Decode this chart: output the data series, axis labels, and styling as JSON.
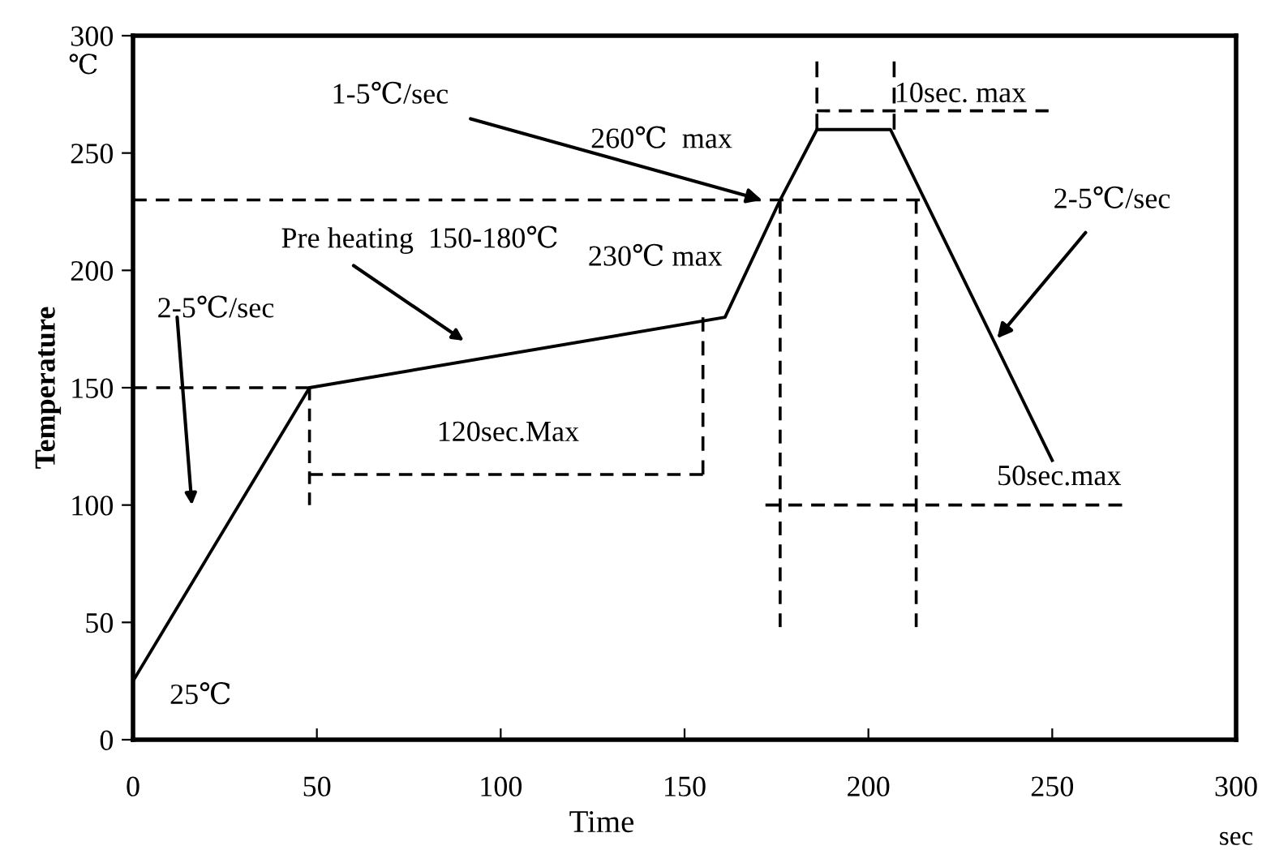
{
  "chart_data": {
    "type": "line",
    "xlabel": "Time",
    "ylabel": "Temperature",
    "xlim": [
      0,
      300
    ],
    "ylim": [
      0,
      300
    ],
    "xticks": [
      0,
      50,
      100,
      150,
      200,
      250,
      300
    ],
    "yticks": [
      0,
      50,
      100,
      150,
      200,
      250,
      300
    ],
    "grid": false,
    "legend": false,
    "marker": "none",
    "series": [
      {
        "color": "#000000",
        "line_style": "solid",
        "x": [
          0,
          48,
          161,
          176,
          186,
          206,
          250
        ],
        "values": [
          25,
          150,
          180,
          230,
          260,
          260,
          119
        ]
      },
      {
        "color": "#000000",
        "line_style": "dashed",
        "x": [
          0,
          48
        ],
        "values": [
          150,
          150
        ]
      },
      {
        "color": "#000000",
        "line_style": "dashed",
        "x": [
          48,
          48
        ],
        "values": [
          150,
          100
        ]
      },
      {
        "color": "#000000",
        "line_style": "dashed",
        "x": [
          48,
          155
        ],
        "values": [
          113,
          113
        ]
      },
      {
        "color": "#000000",
        "line_style": "dashed",
        "x": [
          155,
          155
        ],
        "values": [
          180,
          113
        ]
      },
      {
        "color": "#000000",
        "line_style": "dashed",
        "x": [
          0,
          214
        ],
        "values": [
          230,
          230
        ]
      },
      {
        "color": "#000000",
        "line_style": "dashed",
        "x": [
          176,
          176
        ],
        "values": [
          230,
          48
        ]
      },
      {
        "color": "#000000",
        "line_style": "dashed",
        "x": [
          213,
          213
        ],
        "values": [
          230,
          48
        ]
      },
      {
        "color": "#000000",
        "line_style": "dashed",
        "x": [
          172,
          269
        ],
        "values": [
          100,
          100
        ]
      },
      {
        "color": "#000000",
        "line_style": "dashed",
        "x": [
          186,
          186
        ],
        "values": [
          289,
          260
        ]
      },
      {
        "color": "#000000",
        "line_style": "dashed",
        "x": [
          207,
          207
        ],
        "values": [
          289,
          260
        ]
      },
      {
        "color": "#000000",
        "line_style": "dashed",
        "x": [
          186,
          249
        ],
        "values": [
          268,
          268
        ]
      }
    ],
    "annotations": [
      "2-5℃/sec",
      "Pre heating  150-180℃",
      {
        "text": "1-5℃/sec",
        "x": 171,
        "y": 230
      },
      {
        "text": "2-5℃/sec",
        "x": 235,
        "y": 171
      },
      {
        "text": "25℃",
        "x": 0,
        "y": 25
      },
      {
        "text": "260℃  max",
        "x": 186,
        "y": 260
      },
      {
        "text": "230℃ max",
        "x": 142,
        "y": 230
      },
      {
        "text": "10sec. max",
        "x": 225,
        "y": 268
      },
      {
        "text": "120sec.Max",
        "x": 102,
        "y": 113
      },
      {
        "text": "50sec.max",
        "x": 220,
        "y": 100
      },
      "℃",
      "sec"
    ]
  }
}
